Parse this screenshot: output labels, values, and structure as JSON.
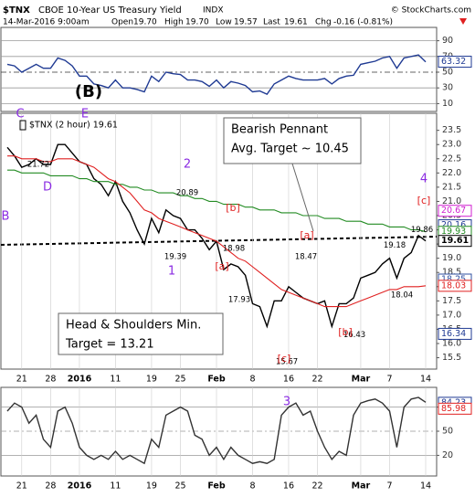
{
  "header": {
    "symbol": "$TNX",
    "name": "CBOE 10-Year US Treasury Yield",
    "exchange": "INDX",
    "copyright": "© StockCharts.com",
    "date": "14-Mar-2016 9:00am",
    "fields": [
      [
        "Open",
        "19.70"
      ],
      [
        "High",
        "19.70"
      ],
      [
        "Low",
        "19.57"
      ],
      [
        "Last",
        "19.61"
      ],
      [
        "Chg",
        "-0.16 (-0.81%)"
      ]
    ]
  },
  "chart_data": [
    {
      "type": "line",
      "ylim": [
        0,
        100
      ],
      "yticks": [
        10,
        30,
        50,
        70,
        90
      ],
      "grid": true,
      "series": [
        {
          "color": "#1f3a93",
          "values": [
            60,
            58,
            50,
            55,
            60,
            55,
            55,
            68,
            65,
            58,
            45,
            45,
            35,
            33,
            30,
            40,
            30,
            30,
            28,
            25,
            45,
            38,
            50,
            48,
            47,
            40,
            40,
            38,
            32,
            40,
            30,
            38,
            36,
            33,
            25,
            26,
            22,
            35,
            40,
            45,
            42,
            40,
            40,
            40,
            42,
            35,
            42,
            45,
            46,
            60,
            62,
            64,
            68,
            70,
            55,
            68,
            70,
            72,
            63
          ]
        }
      ],
      "value_tags": [
        {
          "value": 63.32,
          "color": "#1f3a93"
        }
      ]
    },
    {
      "type": "line",
      "legend": "$TNX (2 hour) 19.61",
      "ylim": [
        15.1,
        24.1
      ],
      "yticks": [
        15.5,
        {
          "value": 16,
          "label": "16.0"
        },
        16.5,
        {
          "value": 17,
          "label": "17.0"
        },
        17.5,
        {
          "value": 18,
          "label": "18.0"
        },
        18.5,
        {
          "value": 19,
          "label": "19.0"
        },
        19.5,
        {
          "value": 20,
          "label": "20.0"
        },
        20.5,
        {
          "value": 21,
          "label": "21.0"
        },
        21.5,
        {
          "value": 22,
          "label": "22.0"
        },
        22.5,
        {
          "value": 23,
          "label": "23.0"
        },
        23.5
      ],
      "categories": [
        null,
        null,
        "21",
        null,
        null,
        null,
        "28",
        null,
        null,
        null,
        "2016",
        null,
        null,
        null,
        null,
        "11",
        null,
        null,
        null,
        null,
        "19",
        null,
        null,
        null,
        "25",
        null,
        null,
        null,
        null,
        "Feb",
        null,
        null,
        null,
        null,
        "8",
        null,
        null,
        null,
        null,
        "16",
        null,
        null,
        null,
        "22",
        null,
        null,
        null,
        null,
        null,
        "Mar",
        null,
        null,
        null,
        "7",
        null,
        null,
        null,
        null,
        "14"
      ],
      "series": [
        {
          "color": "#000000",
          "values": [
            22.9,
            22.6,
            22.2,
            22.3,
            22.5,
            22.3,
            22.3,
            23.0,
            23.0,
            22.7,
            22.4,
            22.3,
            21.8,
            21.6,
            21.2,
            21.7,
            21.0,
            20.6,
            20.0,
            19.5,
            20.4,
            19.9,
            20.7,
            20.5,
            20.4,
            20.0,
            20.0,
            19.7,
            19.3,
            19.6,
            18.6,
            18.8,
            18.7,
            18.4,
            17.4,
            17.3,
            16.6,
            17.5,
            17.5,
            18.0,
            17.8,
            17.6,
            17.5,
            17.4,
            17.5,
            16.6,
            17.4,
            17.4,
            17.6,
            18.3,
            18.4,
            18.5,
            18.8,
            19.0,
            18.3,
            19.0,
            19.2,
            19.8,
            19.61
          ]
        },
        {
          "color": "#228b22",
          "values": [
            22.1,
            22.1,
            22.0,
            22.0,
            22.0,
            22.0,
            21.9,
            21.9,
            21.9,
            21.9,
            21.8,
            21.8,
            21.7,
            21.7,
            21.7,
            21.6,
            21.6,
            21.5,
            21.5,
            21.4,
            21.4,
            21.3,
            21.3,
            21.3,
            21.2,
            21.2,
            21.1,
            21.1,
            21.0,
            21.0,
            20.9,
            20.9,
            20.9,
            20.8,
            20.8,
            20.7,
            20.7,
            20.7,
            20.6,
            20.6,
            20.6,
            20.5,
            20.5,
            20.5,
            20.4,
            20.4,
            20.4,
            20.3,
            20.3,
            20.3,
            20.2,
            20.2,
            20.2,
            20.1,
            20.1,
            20.1,
            20.0,
            20.0,
            19.93
          ]
        },
        {
          "color": "#e02020",
          "values": [
            22.6,
            22.6,
            22.5,
            22.5,
            22.5,
            22.4,
            22.4,
            22.5,
            22.5,
            22.5,
            22.4,
            22.3,
            22.2,
            22.0,
            21.8,
            21.7,
            21.5,
            21.3,
            21.0,
            20.7,
            20.6,
            20.4,
            20.3,
            20.2,
            20.1,
            20.0,
            19.9,
            19.8,
            19.7,
            19.6,
            19.4,
            19.2,
            19.0,
            18.9,
            18.7,
            18.5,
            18.3,
            18.1,
            17.9,
            17.8,
            17.7,
            17.6,
            17.5,
            17.4,
            17.3,
            17.3,
            17.3,
            17.3,
            17.4,
            17.5,
            17.6,
            17.7,
            17.8,
            17.9,
            17.9,
            18.0,
            18.0,
            18.0,
            18.03
          ]
        }
      ],
      "value_tags": [
        {
          "value": 20.67,
          "color": "#d020d0"
        },
        {
          "value": 20.16,
          "color": "#1f3a93"
        },
        {
          "value": 19.93,
          "color": "#228b22"
        },
        {
          "value": 19.61,
          "color": "#000000"
        },
        {
          "value": 18.25,
          "color": "#3050a0"
        },
        {
          "value": 18.03,
          "color": "#e02020"
        },
        {
          "value": 16.34,
          "color": "#1f3a93"
        }
      ],
      "point_labels": [
        21.72,
        20.89,
        19.39,
        18.98,
        17.93,
        18.47,
        15.67,
        16.43,
        19.18,
        19.86,
        18.04
      ],
      "annotations": [
        {
          "text": "(B)",
          "color": "#000000"
        },
        {
          "text": "C",
          "color": "#8a2be2"
        },
        {
          "text": "E",
          "color": "#8a2be2"
        },
        {
          "text": "B",
          "color": "#8a2be2"
        },
        {
          "text": "D",
          "color": "#8a2be2"
        },
        {
          "text": "2",
          "color": "#8a2be2"
        },
        {
          "text": "1",
          "color": "#8a2be2"
        },
        {
          "text": "[b]",
          "color": "#e02020"
        },
        {
          "text": "[a]",
          "color": "#e02020"
        },
        {
          "text": "[a]",
          "color": "#e02020"
        },
        {
          "text": "[c]",
          "color": "#e02020"
        },
        {
          "text": "[b]",
          "color": "#e02020"
        },
        {
          "text": "4",
          "color": "#8a2be2"
        },
        {
          "text": "[c]",
          "color": "#e02020"
        }
      ],
      "boxes": [
        [
          "Bearish Pennant",
          "Avg. Target ~ 10.45"
        ],
        [
          "Head & Shoulders Min.",
          "Target = 13.21"
        ]
      ]
    },
    {
      "type": "line",
      "ylim": [
        0,
        100
      ],
      "yticks": [
        20,
        50,
        80
      ],
      "grid": true,
      "series": [
        {
          "color": "#333333",
          "values": [
            75,
            85,
            80,
            60,
            70,
            40,
            30,
            75,
            80,
            60,
            30,
            20,
            15,
            20,
            15,
            25,
            15,
            20,
            15,
            10,
            40,
            30,
            70,
            75,
            80,
            75,
            45,
            40,
            20,
            30,
            15,
            30,
            20,
            15,
            10,
            12,
            10,
            15,
            70,
            80,
            85,
            70,
            75,
            50,
            30,
            15,
            25,
            20,
            70,
            85,
            88,
            90,
            85,
            75,
            30,
            80,
            90,
            92,
            86
          ]
        }
      ],
      "value_tags": [
        {
          "value": 84.23,
          "color": "#1f3a93"
        },
        {
          "value": 85.98,
          "color": "#e02020"
        }
      ],
      "annotations": [
        {
          "text": "3",
          "color": "#8a2be2"
        }
      ]
    }
  ]
}
